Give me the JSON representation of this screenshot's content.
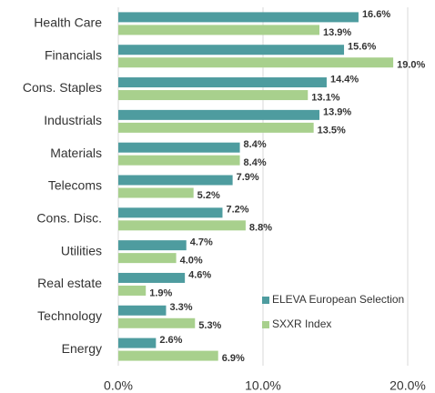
{
  "chart_data": {
    "type": "bar",
    "orientation": "horizontal",
    "categories": [
      "Health Care",
      "Financials",
      "Cons. Staples",
      "Industrials",
      "Materials",
      "Telecoms",
      "Cons. Disc.",
      "Utilities",
      "Real estate",
      "Technology",
      "Energy"
    ],
    "series": [
      {
        "name": "ELEVA European Selection",
        "color": "#4e9c9f",
        "values": [
          16.6,
          15.6,
          14.4,
          13.9,
          8.4,
          7.9,
          7.2,
          4.7,
          4.6,
          3.3,
          2.6
        ],
        "value_labels": [
          "16.6%",
          "15.6%",
          "14.4%",
          "13.9%",
          "8.4%",
          "7.9%",
          "7.2%",
          "4.7%",
          "4.6%",
          "3.3%",
          "2.6%"
        ]
      },
      {
        "name": "SXXR Index",
        "color": "#a8d08d",
        "values": [
          13.9,
          19.0,
          13.1,
          13.5,
          8.4,
          5.2,
          8.8,
          4.0,
          1.9,
          5.3,
          6.9
        ],
        "value_labels": [
          "13.9%",
          "19.0%",
          "13.1%",
          "13.5%",
          "8.4%",
          "5.2%",
          "8.8%",
          "4.0%",
          "1.9%",
          "5.3%",
          "6.9%"
        ]
      }
    ],
    "xlim": [
      0,
      20
    ],
    "xticks": [
      {
        "value": 0,
        "label": "0.0%"
      },
      {
        "value": 10,
        "label": "10.0%"
      },
      {
        "value": 20,
        "label": "20.0%"
      }
    ],
    "grid": true,
    "legend": "lower right"
  }
}
